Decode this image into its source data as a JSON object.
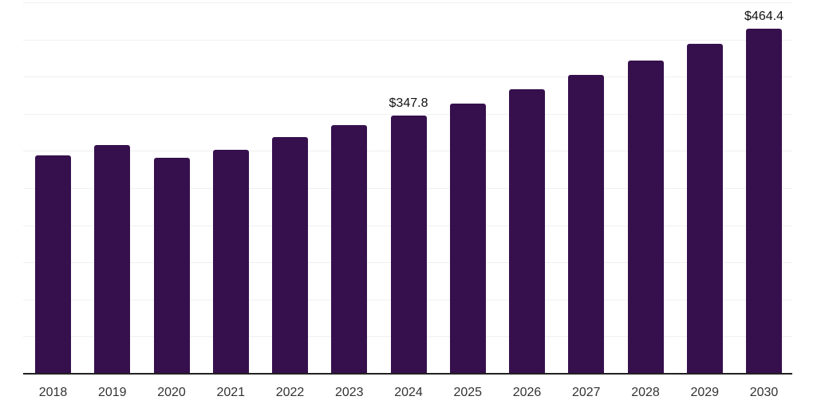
{
  "chart_data": {
    "type": "bar",
    "title": "",
    "xlabel": "",
    "ylabel": "",
    "categories": [
      "2018",
      "2019",
      "2020",
      "2021",
      "2022",
      "2023",
      "2024",
      "2025",
      "2026",
      "2027",
      "2028",
      "2029",
      "2030"
    ],
    "values": [
      294,
      308,
      291,
      302,
      319,
      335,
      347.8,
      364,
      383,
      402,
      422,
      444,
      464.4
    ],
    "data_labels": {
      "2024": "$347.8",
      "2030": "$464.4"
    },
    "value_prefix": "$",
    "ylim": [
      0,
      500
    ],
    "gridline_step": 50,
    "grid": true,
    "legend_position": "none"
  },
  "colors": {
    "bar": "#36104D",
    "gridline": "#F0F0F0",
    "axis_line": "#222222",
    "tick_label": "#333333",
    "data_label": "#111111",
    "background": "#FFFFFF"
  }
}
